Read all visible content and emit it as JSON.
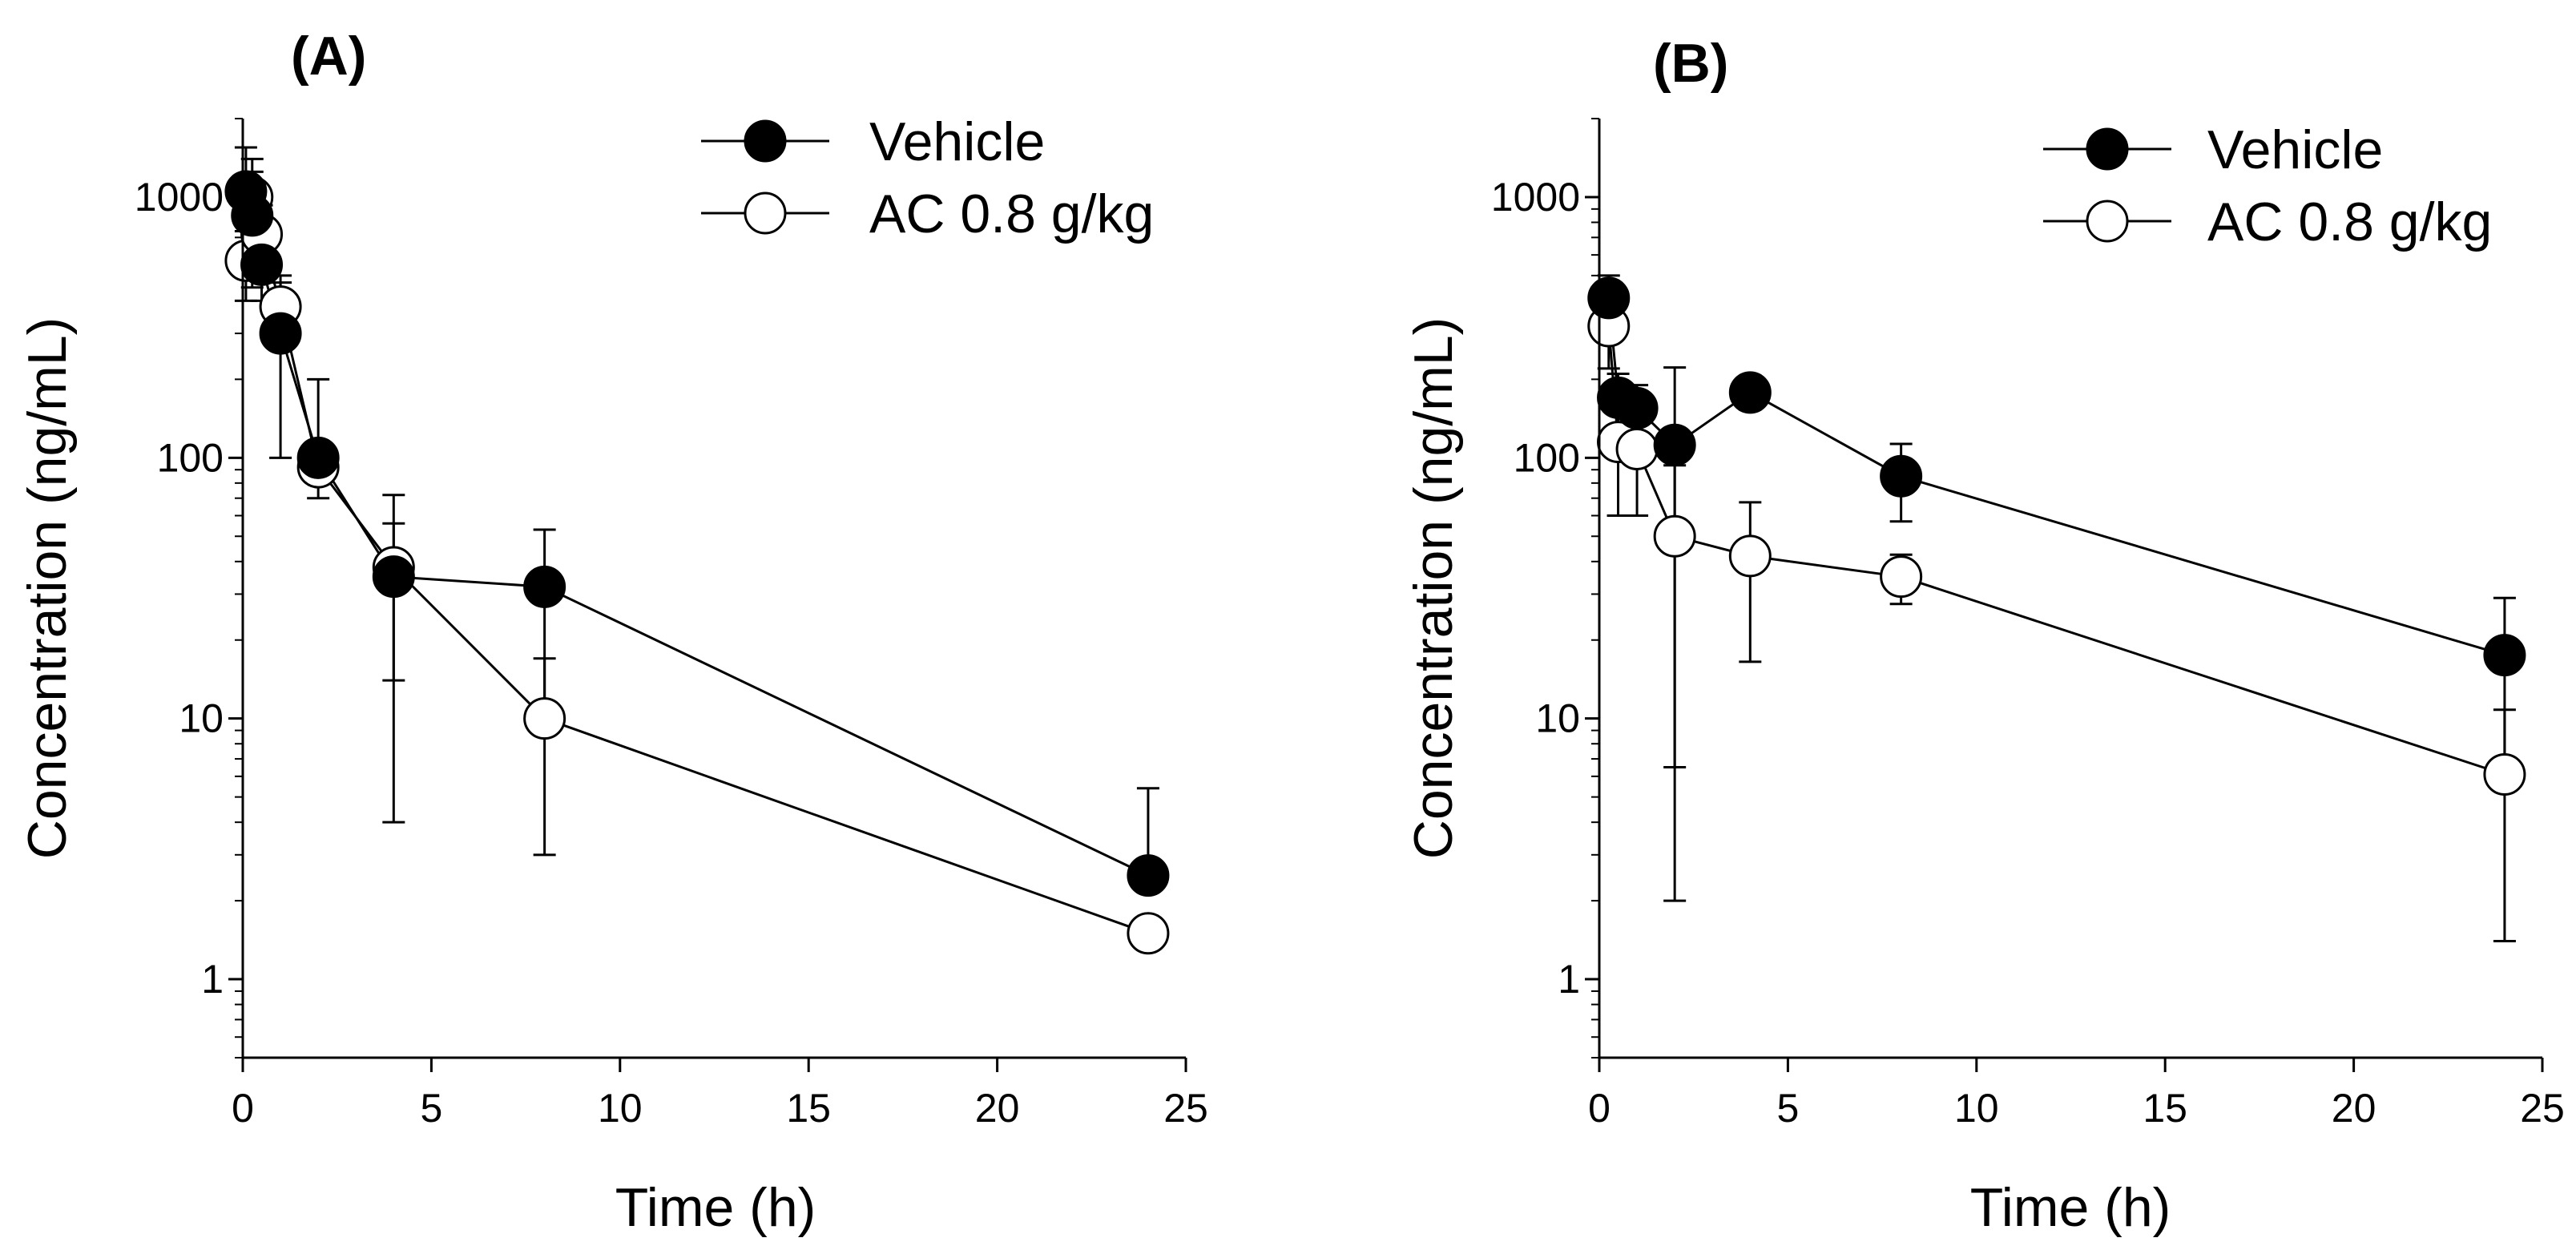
{
  "chart_data": [
    {
      "type": "line",
      "panel": "(A)",
      "xlabel": "Time (h)",
      "ylabel": "Concentration (ng/mL)",
      "xscale": "linear",
      "yscale": "log",
      "xlim": [
        0,
        25
      ],
      "ylim": [
        0.5,
        2000
      ],
      "xticks": [
        0,
        5,
        10,
        15,
        20,
        25
      ],
      "xtick_labels": [
        "0",
        "5",
        "10",
        "15",
        "20",
        "25"
      ],
      "yticks": [
        1,
        10,
        100,
        1000
      ],
      "ytick_labels": [
        "1",
        "10",
        "100",
        "1000"
      ],
      "legend_position": "top-right",
      "series": [
        {
          "name": "Vehicle",
          "marker": "filled-circle",
          "x": [
            0.083,
            0.25,
            0.5,
            1,
            2,
            4,
            8,
            24
          ],
          "y": [
            1050,
            850,
            550,
            300,
            100,
            35,
            32,
            2.5
          ],
          "err": [
            500,
            400,
            150,
            200,
            100,
            21,
            21,
            2.9
          ]
        },
        {
          "name": "AC 0.8 g/kg",
          "marker": "open-circle",
          "x": [
            0.083,
            0.25,
            0.5,
            1,
            2,
            4,
            8,
            24
          ],
          "y": [
            570,
            1000,
            720,
            380,
            92,
            38,
            10,
            1.5
          ],
          "err": [
            170,
            400,
            210,
            90,
            22,
            34,
            7,
            0
          ]
        }
      ]
    },
    {
      "type": "line",
      "panel": "(B)",
      "xlabel": "Time (h)",
      "ylabel": "Concentration (ng/mL)",
      "xscale": "linear",
      "yscale": "log",
      "xlim": [
        0,
        25
      ],
      "ylim": [
        0.5,
        2000
      ],
      "xticks": [
        0,
        5,
        10,
        15,
        20,
        25
      ],
      "xtick_labels": [
        "0",
        "5",
        "10",
        "15",
        "20",
        "25"
      ],
      "yticks": [
        1,
        10,
        100,
        1000
      ],
      "ytick_labels": [
        "1",
        "10",
        "100",
        "1000"
      ],
      "legend_position": "top-right",
      "series": [
        {
          "name": "Vehicle",
          "marker": "filled-circle",
          "x": [
            0.25,
            0.5,
            1,
            2,
            4,
            8,
            24
          ],
          "y": [
            410,
            170,
            155,
            112,
            178,
            85,
            17.5
          ],
          "err": [
            90,
            40,
            35,
            110,
            25,
            28,
            11.5
          ]
        },
        {
          "name": "AC 0.8 g/kg",
          "marker": "open-circle",
          "x": [
            0.25,
            0.5,
            1,
            2,
            4,
            8,
            24
          ],
          "y": [
            320,
            115,
            108,
            50,
            42,
            35,
            6.1
          ],
          "err": [
            100,
            55,
            48,
            43.5,
            25.5,
            7.5,
            4.7
          ]
        }
      ]
    }
  ]
}
